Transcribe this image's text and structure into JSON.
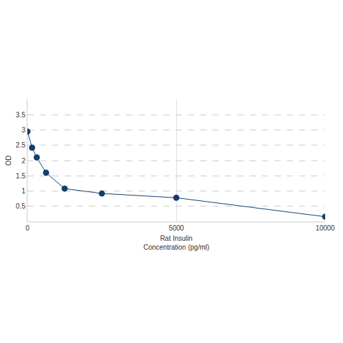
{
  "chart_data": {
    "type": "line",
    "x_label": "Rat Insulin\nConcentration (pg/ml)",
    "y_label": "OD",
    "x": [
      0,
      156.25,
      312.5,
      625,
      1250,
      2500,
      5000,
      10000
    ],
    "values": [
      2.95,
      2.42,
      2.1,
      1.6,
      1.08,
      0.92,
      0.78,
      0.16
    ],
    "color": "#143d6e",
    "marker": "circle",
    "xlim": [
      0,
      10000
    ],
    "xticks": [
      0,
      5000,
      10000
    ],
    "ylim": [
      0,
      4
    ],
    "yticks": [
      0.5,
      1,
      1.5,
      2,
      2.5,
      3,
      3.5
    ],
    "grid": true
  }
}
